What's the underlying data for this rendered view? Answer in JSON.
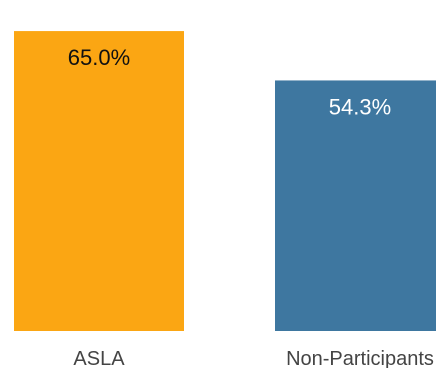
{
  "chart_data": {
    "type": "bar",
    "title": "",
    "xlabel": "",
    "ylabel": "",
    "categories": [
      "ASLA",
      "Non-Participants"
    ],
    "values": [
      65.0,
      54.3
    ],
    "value_labels": [
      "65.0%",
      "54.3%"
    ],
    "colors": [
      "#FBA613",
      "#3E77A0"
    ],
    "ylim": [
      0,
      70
    ],
    "grid": false,
    "legend": "none"
  }
}
